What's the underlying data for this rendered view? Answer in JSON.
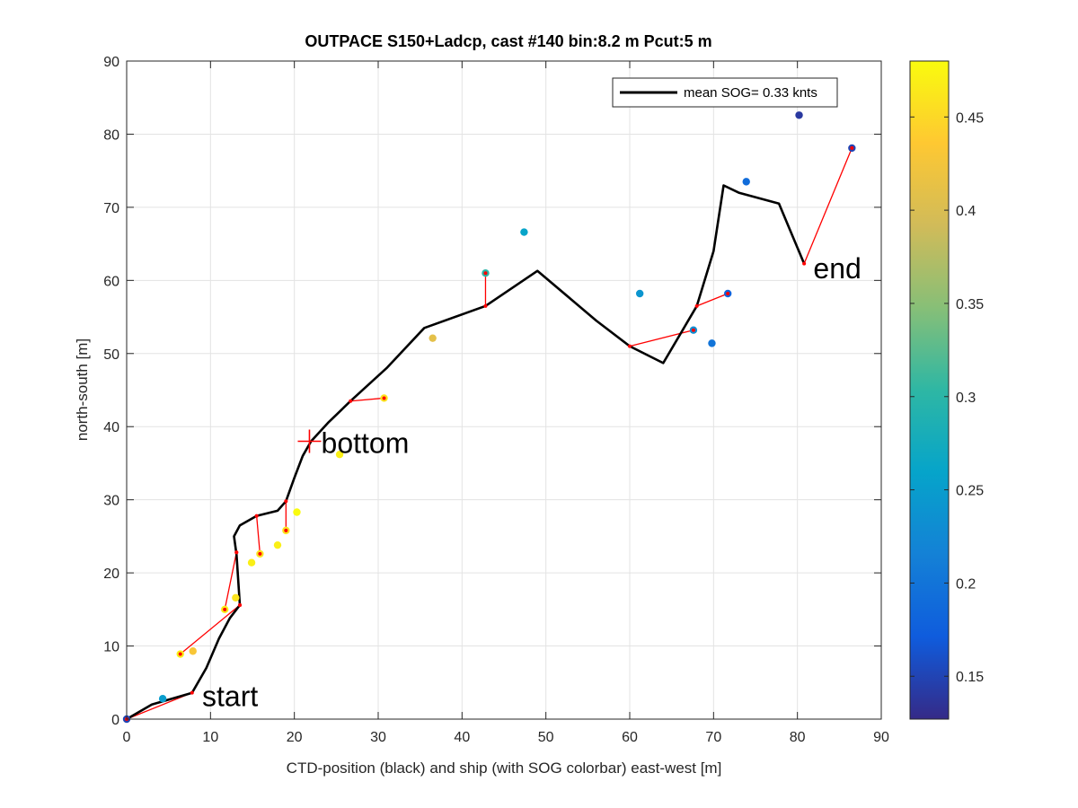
{
  "chart_data": {
    "type": "scatter",
    "title": "OUTPACE S150+Ladcp, cast #140 bin:8.2 m  Pcut:5 m",
    "xlabel": "CTD-position (black) and ship (with SOG colorbar) east-west [m]",
    "ylabel": "north-south [m]",
    "xlim": [
      0,
      90
    ],
    "ylim": [
      0,
      90
    ],
    "xticks": [
      0,
      10,
      20,
      30,
      40,
      50,
      60,
      70,
      80,
      90
    ],
    "yticks": [
      0,
      10,
      20,
      30,
      40,
      50,
      60,
      70,
      80,
      90
    ],
    "grid": true,
    "legend": {
      "label": "mean SOG=  0.33 knts",
      "placement": "top-right"
    },
    "colorbar": {
      "range": [
        0.127,
        0.48
      ],
      "ticks": [
        0.15,
        0.2,
        0.25,
        0.3,
        0.35,
        0.4,
        0.45
      ],
      "colormap": [
        "#352a87",
        "#0f5cdd",
        "#1481d6",
        "#06a4ca",
        "#2eb7a4",
        "#87bf77",
        "#d1bb59",
        "#fec832",
        "#f9fb0e"
      ]
    },
    "ctd_track": [
      [
        0,
        0
      ],
      [
        3,
        2
      ],
      [
        7.8,
        3.6
      ],
      [
        9.5,
        7
      ],
      [
        11,
        11
      ],
      [
        12.3,
        13.8
      ],
      [
        13.5,
        15.6
      ],
      [
        13.1,
        22.5
      ],
      [
        12.8,
        25
      ],
      [
        13.5,
        26.5
      ],
      [
        15.5,
        27.8
      ],
      [
        18,
        28.5
      ],
      [
        19,
        29.8
      ],
      [
        20,
        33
      ],
      [
        21,
        36
      ],
      [
        22,
        38
      ],
      [
        24,
        40.5
      ],
      [
        26.7,
        43.5
      ],
      [
        31,
        48
      ],
      [
        35.5,
        53.5
      ],
      [
        42.8,
        56.5
      ],
      [
        49,
        61.3
      ],
      [
        56,
        54.5
      ],
      [
        60,
        51
      ],
      [
        64,
        48.7
      ],
      [
        68,
        56.5
      ],
      [
        70,
        64
      ],
      [
        71.2,
        73
      ],
      [
        73,
        72
      ],
      [
        77.8,
        70.5
      ],
      [
        80.8,
        62.3
      ]
    ],
    "ship_points": [
      {
        "x": 0,
        "y": 0,
        "sog": 0.15
      },
      {
        "x": 4.3,
        "y": 2.8,
        "sog": 0.25
      },
      {
        "x": 6.4,
        "y": 8.9,
        "sog": 0.47
      },
      {
        "x": 7.9,
        "y": 9.3,
        "sog": 0.43
      },
      {
        "x": 11.7,
        "y": 15,
        "sog": 0.47
      },
      {
        "x": 13,
        "y": 16.6,
        "sog": 0.46
      },
      {
        "x": 14.9,
        "y": 21.4,
        "sog": 0.47
      },
      {
        "x": 15.9,
        "y": 22.6,
        "sog": 0.46
      },
      {
        "x": 18,
        "y": 23.8,
        "sog": 0.47
      },
      {
        "x": 19,
        "y": 25.8,
        "sog": 0.46
      },
      {
        "x": 20.3,
        "y": 28.3,
        "sog": 0.48
      },
      {
        "x": 25.4,
        "y": 36.2,
        "sog": 0.47
      },
      {
        "x": 30.7,
        "y": 43.9,
        "sog": 0.46
      },
      {
        "x": 36.5,
        "y": 52.1,
        "sog": 0.41
      },
      {
        "x": 42.8,
        "y": 61,
        "sog": 0.3
      },
      {
        "x": 47.4,
        "y": 66.6,
        "sog": 0.26
      },
      {
        "x": 61.2,
        "y": 58.2,
        "sog": 0.24
      },
      {
        "x": 67.6,
        "y": 53.2,
        "sog": 0.23
      },
      {
        "x": 69.8,
        "y": 51.4,
        "sog": 0.2
      },
      {
        "x": 71.7,
        "y": 58.2,
        "sog": 0.18
      },
      {
        "x": 73.9,
        "y": 73.5,
        "sog": 0.19
      },
      {
        "x": 80.2,
        "y": 82.6,
        "sog": 0.14
      },
      {
        "x": 86.5,
        "y": 78.1,
        "sog": 0.15
      }
    ],
    "connectors": [
      [
        [
          0,
          0
        ],
        [
          7.8,
          3.6
        ]
      ],
      [
        [
          6.4,
          8.9
        ],
        [
          13.5,
          15.6
        ]
      ],
      [
        [
          11.7,
          15
        ],
        [
          13.1,
          22.8
        ]
      ],
      [
        [
          13.1,
          22.8
        ],
        [
          13.5,
          15.6
        ]
      ],
      [
        [
          15.5,
          27.8
        ],
        [
          15.9,
          22.6
        ]
      ],
      [
        [
          19,
          29.8
        ],
        [
          19,
          25.8
        ]
      ],
      [
        [
          26.7,
          43.5
        ],
        [
          30.7,
          43.9
        ]
      ],
      [
        [
          42.8,
          56.5
        ],
        [
          42.8,
          61
        ]
      ],
      [
        [
          60,
          51
        ],
        [
          67.6,
          53.2
        ]
      ],
      [
        [
          68,
          56.5
        ],
        [
          71.7,
          58.2
        ]
      ],
      [
        [
          80.8,
          62.3
        ],
        [
          86.5,
          78.1
        ]
      ]
    ],
    "annotations": [
      {
        "text": "start",
        "x": 9,
        "y": 1.8
      },
      {
        "text": "bottom",
        "x": 23.2,
        "y": 36.4
      },
      {
        "text": "end",
        "x": 81.9,
        "y": 60.3
      }
    ],
    "bottom_marker": {
      "x": 21.8,
      "y": 38
    },
    "colors": {
      "track": "#000000",
      "connector": "#ff0000",
      "grid": "#e3e3e3",
      "axes": "#262626"
    }
  }
}
